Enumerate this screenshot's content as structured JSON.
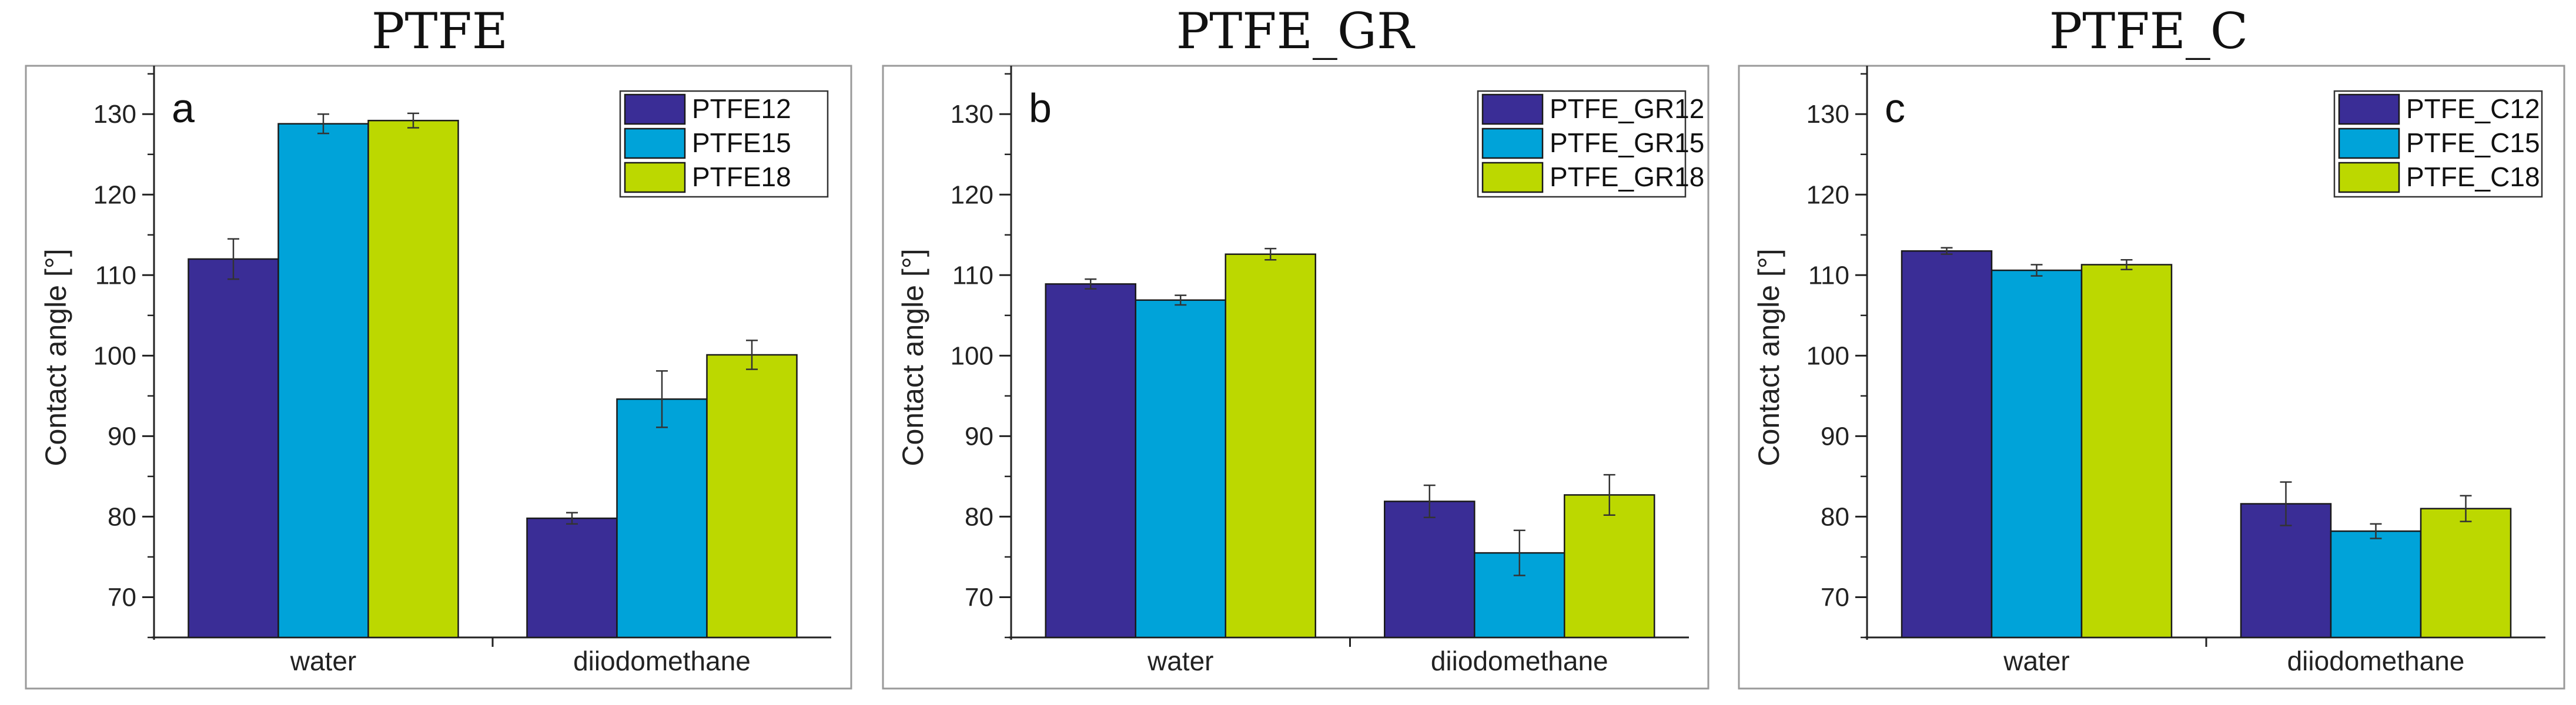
{
  "chart_data": [
    {
      "type": "bar",
      "title": "PTFE",
      "panel_label": "a",
      "ylabel": "Contact angle [°]",
      "xlabel": "",
      "ylim": [
        65,
        136
      ],
      "yticks": [
        70,
        80,
        90,
        100,
        110,
        120,
        130
      ],
      "categories": [
        "water",
        "diiodomethane"
      ],
      "legend_position": "top-right",
      "series": [
        {
          "name": "PTFE12",
          "color": "#3a2d96",
          "values": [
            112.0,
            79.8
          ],
          "errors": [
            2.5,
            0.7
          ]
        },
        {
          "name": "PTFE15",
          "color": "#00a3d9",
          "values": [
            128.8,
            94.6
          ],
          "errors": [
            1.2,
            3.5
          ]
        },
        {
          "name": "PTFE18",
          "color": "#bcd800",
          "values": [
            129.2,
            100.1
          ],
          "errors": [
            0.9,
            1.8
          ]
        }
      ]
    },
    {
      "type": "bar",
      "title": "PTFE_GR",
      "panel_label": "b",
      "ylabel": "Contact angle [°]",
      "xlabel": "",
      "ylim": [
        65,
        136
      ],
      "yticks": [
        70,
        80,
        90,
        100,
        110,
        120,
        130
      ],
      "categories": [
        "water",
        "diiodomethane"
      ],
      "legend_position": "top-right",
      "series": [
        {
          "name": "PTFE_GR12",
          "color": "#3a2d96",
          "values": [
            108.9,
            81.9
          ],
          "errors": [
            0.6,
            2.0
          ]
        },
        {
          "name": "PTFE_GR15",
          "color": "#00a3d9",
          "values": [
            106.9,
            75.5
          ],
          "errors": [
            0.6,
            2.8
          ]
        },
        {
          "name": "PTFE_GR18",
          "color": "#bcd800",
          "values": [
            112.6,
            82.7
          ],
          "errors": [
            0.7,
            2.5
          ]
        }
      ]
    },
    {
      "type": "bar",
      "title": "PTFE_C",
      "panel_label": "c",
      "ylabel": "Contact angle [°]",
      "xlabel": "",
      "ylim": [
        65,
        136
      ],
      "yticks": [
        70,
        80,
        90,
        100,
        110,
        120,
        130
      ],
      "categories": [
        "water",
        "diiodomethane"
      ],
      "legend_position": "top-right",
      "series": [
        {
          "name": "PTFE_C12",
          "color": "#3a2d96",
          "values": [
            113.0,
            81.6
          ],
          "errors": [
            0.4,
            2.7
          ]
        },
        {
          "name": "PTFE_C15",
          "color": "#00a3d9",
          "values": [
            110.6,
            78.2
          ],
          "errors": [
            0.7,
            0.9
          ]
        },
        {
          "name": "PTFE_C18",
          "color": "#bcd800",
          "values": [
            111.3,
            81.0
          ],
          "errors": [
            0.6,
            1.6
          ]
        }
      ]
    }
  ]
}
